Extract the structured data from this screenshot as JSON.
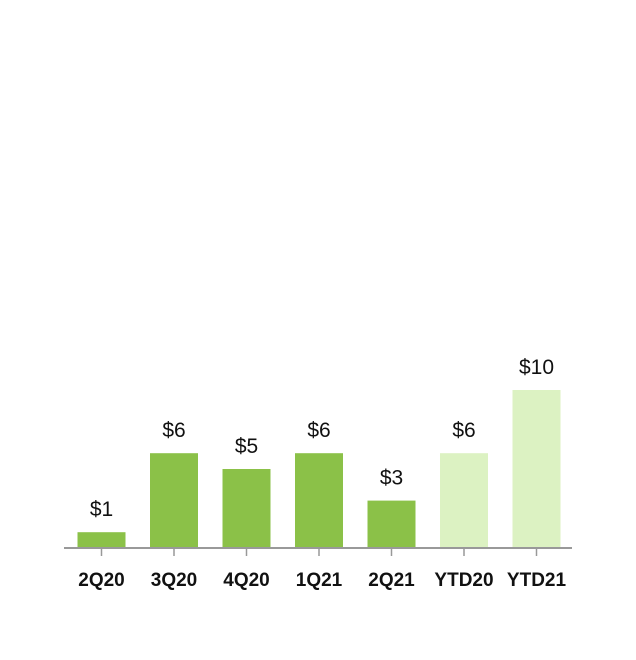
{
  "chart_data": {
    "type": "bar",
    "categories": [
      "2Q20",
      "3Q20",
      "4Q20",
      "1Q21",
      "2Q21",
      "YTD20",
      "YTD21"
    ],
    "values": [
      1,
      6,
      5,
      6,
      3,
      6,
      10
    ],
    "data_labels": [
      "$1",
      "$6",
      "$5",
      "$6",
      "$3",
      "$6",
      "$10"
    ],
    "title": "",
    "xlabel": "",
    "ylabel": "",
    "ylim": [
      0,
      10
    ],
    "grid": false,
    "legend": "none",
    "colors": {
      "quarter": "#8bc148",
      "ytd": "#dcf2c2",
      "axis": "#999999",
      "text": "#111111"
    },
    "bar_color_keys": [
      "quarter",
      "quarter",
      "quarter",
      "quarter",
      "quarter",
      "ytd",
      "ytd"
    ]
  }
}
